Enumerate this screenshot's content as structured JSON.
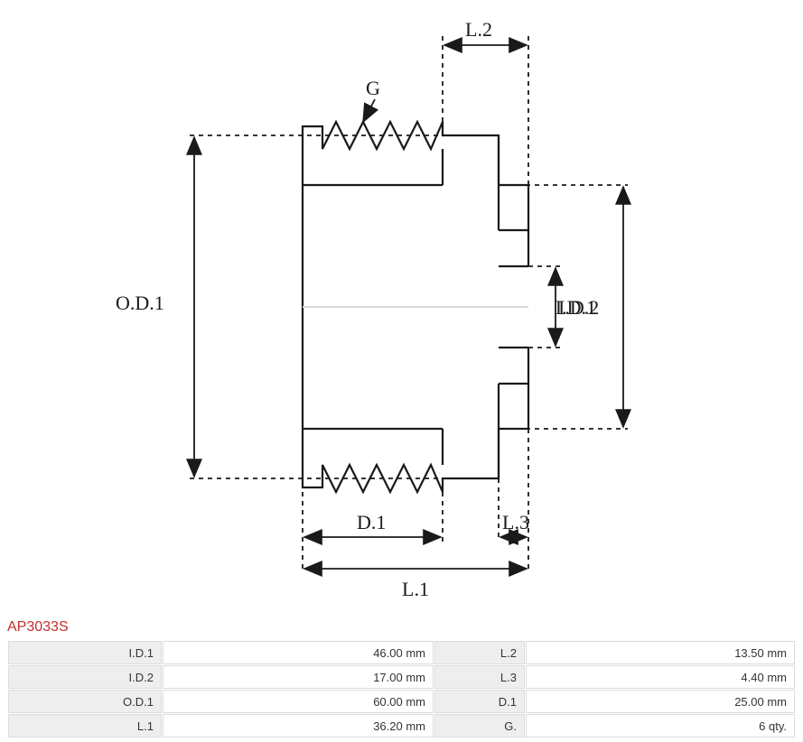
{
  "part_number": "AP3033S",
  "part_number_color": "#c22f2f",
  "diagram": {
    "stroke": "#1a1a1a",
    "stroke_width": 2.2,
    "dash": "4,4",
    "labels": {
      "od1": "O.D.1",
      "id1": "I.D.1",
      "id2": "I.D.2",
      "l1": "L.1",
      "l2": "L.2",
      "l3": "L.3",
      "d1": "D.1",
      "g": "G"
    }
  },
  "specs": {
    "rows": [
      {
        "label_a": "I.D.1",
        "value_a": "46.00 mm",
        "label_b": "L.2",
        "value_b": "13.50 mm"
      },
      {
        "label_a": "I.D.2",
        "value_a": "17.00 mm",
        "label_b": "L.3",
        "value_b": "4.40 mm"
      },
      {
        "label_a": "O.D.1",
        "value_a": "60.00 mm",
        "label_b": "D.1",
        "value_b": "25.00 mm"
      },
      {
        "label_a": "L.1",
        "value_a": "36.20 mm",
        "label_b": "G.",
        "value_b": "6 qty."
      }
    ]
  }
}
